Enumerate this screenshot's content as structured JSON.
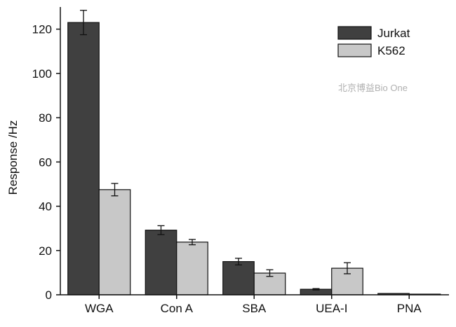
{
  "chart_data": {
    "type": "bar",
    "title": "",
    "xlabel": "",
    "ylabel": "Response /Hz",
    "ylim": [
      0,
      130
    ],
    "yticks": [
      0,
      20,
      40,
      60,
      80,
      100,
      120
    ],
    "categories": [
      "WGA",
      "Con A",
      "SBA",
      "UEA-I",
      "PNA"
    ],
    "series": [
      {
        "name": "Jurkat",
        "color": "#404040",
        "values": [
          123,
          29.2,
          15.0,
          2.5,
          0.6
        ],
        "errors": [
          5.5,
          2.0,
          1.5,
          0.3,
          0.1
        ]
      },
      {
        "name": "K562",
        "color": "#c8c8c8",
        "values": [
          47.5,
          23.8,
          9.8,
          12.0,
          0.3
        ],
        "errors": [
          2.8,
          1.2,
          1.5,
          2.5,
          0.1
        ]
      }
    ],
    "legend_position": "top-right",
    "grid": false
  },
  "watermark": "北京博益Bio One"
}
